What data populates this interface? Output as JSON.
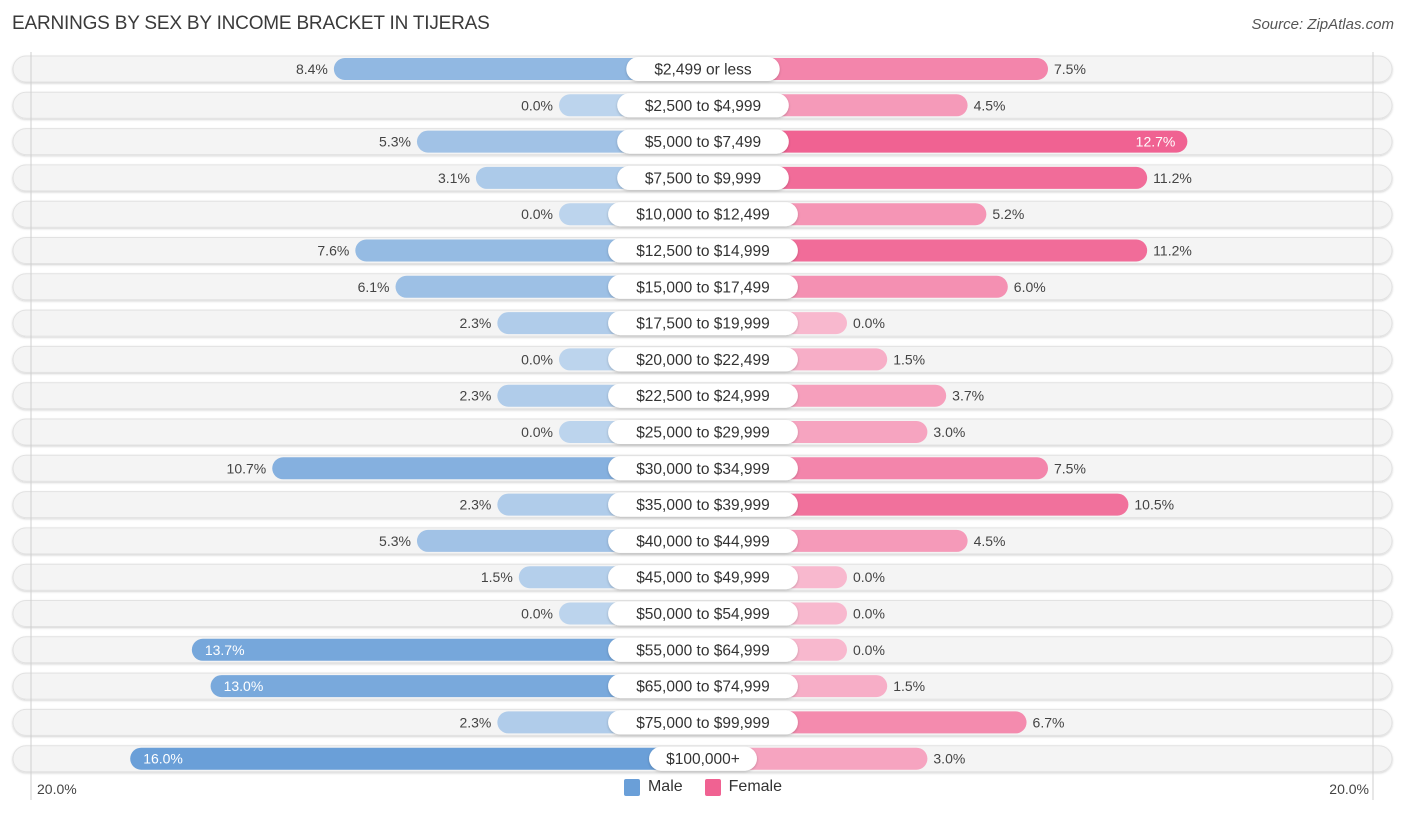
{
  "header": {
    "title": "EARNINGS BY SEX BY INCOME BRACKET IN TIJERAS",
    "source": "Source: ZipAtlas.com"
  },
  "legend": [
    {
      "name": "Male",
      "color": "#6a9fd8"
    },
    {
      "name": "Female",
      "color": "#f06292"
    }
  ],
  "chart_data": {
    "type": "bar",
    "orientation": "horizontal-diverging",
    "title": "EARNINGS BY SEX BY INCOME BRACKET IN TIJERAS",
    "xlabel": "",
    "ylabel": "",
    "axis_min_label": "20.0%",
    "axis_max_label": "20.0%",
    "xlim": [
      -20,
      20
    ],
    "legend_position": "bottom-center",
    "categories": [
      "$2,499 or less",
      "$2,500 to $4,999",
      "$5,000 to $7,499",
      "$7,500 to $9,999",
      "$10,000 to $12,499",
      "$12,500 to $14,999",
      "$15,000 to $17,499",
      "$17,500 to $19,999",
      "$20,000 to $22,499",
      "$22,500 to $24,999",
      "$25,000 to $29,999",
      "$30,000 to $34,999",
      "$35,000 to $39,999",
      "$40,000 to $44,999",
      "$45,000 to $49,999",
      "$50,000 to $54,999",
      "$55,000 to $64,999",
      "$65,000 to $74,999",
      "$75,000 to $99,999",
      "$100,000+"
    ],
    "series": [
      {
        "name": "Male",
        "color": "#6a9fd8",
        "values": [
          8.4,
          0.0,
          5.3,
          3.1,
          0.0,
          7.6,
          6.1,
          2.3,
          0.0,
          2.3,
          0.0,
          10.7,
          2.3,
          5.3,
          1.5,
          0.0,
          13.7,
          13.0,
          2.3,
          16.0
        ],
        "labels": [
          "8.4%",
          "0.0%",
          "5.3%",
          "3.1%",
          "0.0%",
          "7.6%",
          "6.1%",
          "2.3%",
          "0.0%",
          "2.3%",
          "0.0%",
          "10.7%",
          "2.3%",
          "5.3%",
          "1.5%",
          "0.0%",
          "13.7%",
          "13.0%",
          "2.3%",
          "16.0%"
        ]
      },
      {
        "name": "Female",
        "color": "#f06292",
        "values": [
          7.5,
          4.5,
          12.7,
          11.2,
          5.2,
          11.2,
          6.0,
          0.0,
          1.5,
          3.7,
          3.0,
          7.5,
          10.5,
          4.5,
          0.0,
          0.0,
          0.0,
          1.5,
          6.7,
          3.0
        ],
        "labels": [
          "7.5%",
          "4.5%",
          "12.7%",
          "11.2%",
          "5.2%",
          "11.2%",
          "6.0%",
          "0.0%",
          "1.5%",
          "3.7%",
          "3.0%",
          "7.5%",
          "10.5%",
          "4.5%",
          "0.0%",
          "0.0%",
          "0.0%",
          "1.5%",
          "6.7%",
          "3.0%"
        ]
      }
    ]
  }
}
